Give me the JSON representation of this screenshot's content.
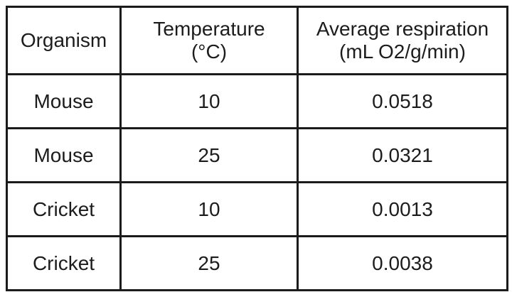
{
  "table": {
    "headers": {
      "organism": {
        "line1": "Organism",
        "line2": ""
      },
      "temperature": {
        "line1": "Temperature",
        "line2": "(°C)"
      },
      "respiration": {
        "line1": "Average respiration",
        "line2": "(mL O2/g/min)"
      }
    },
    "rows": [
      {
        "organism": "Mouse",
        "temperature": "10",
        "respiration": "0.0518"
      },
      {
        "organism": "Mouse",
        "temperature": "25",
        "respiration": "0.0321"
      },
      {
        "organism": "Cricket",
        "temperature": "10",
        "respiration": "0.0013"
      },
      {
        "organism": "Cricket",
        "temperature": "25",
        "respiration": "0.0038"
      }
    ],
    "colors": {
      "border": "#1b1b1b",
      "text": "#1c1c1c",
      "background": "#ffffff"
    }
  },
  "chart_data": {
    "type": "table",
    "title": "",
    "columns": [
      "Organism",
      "Temperature (°C)",
      "Average respiration (mL O2/g/min)"
    ],
    "rows": [
      [
        "Mouse",
        10,
        0.0518
      ],
      [
        "Mouse",
        25,
        0.0321
      ],
      [
        "Cricket",
        10,
        0.0013
      ],
      [
        "Cricket",
        25,
        0.0038
      ]
    ]
  }
}
